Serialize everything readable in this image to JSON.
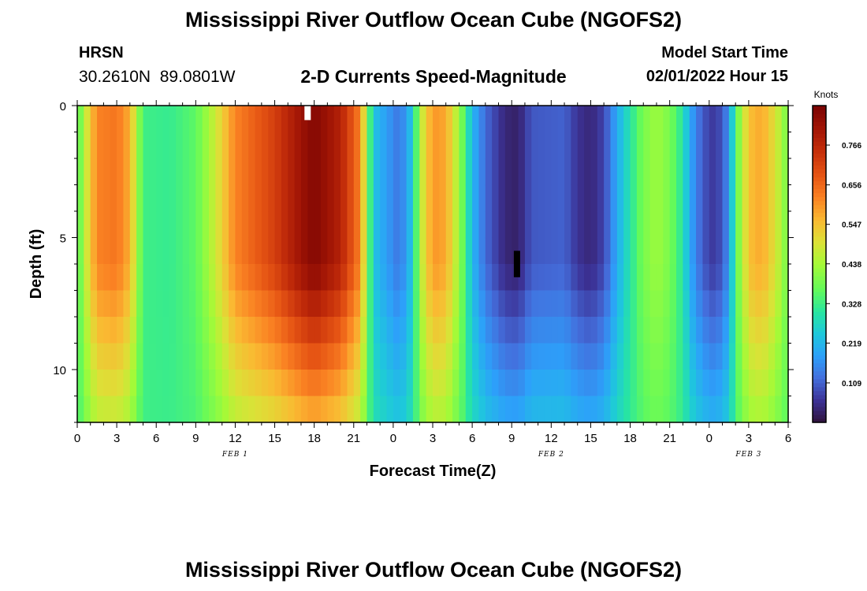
{
  "header": {
    "title": "Mississippi River Outflow Ocean Cube (NGOFS2)",
    "station": "HRSN",
    "coords": "30.2610N  89.0801W",
    "plot_title": "2-D Currents Speed-Magnitude",
    "model_label": "Model Start Time",
    "model_time": "02/01/2022 Hour 15"
  },
  "footer": {
    "title": "Mississippi River Outflow Ocean Cube (NGOFS2)"
  },
  "chart_data": {
    "type": "heatmap",
    "title": "2-D Currents Speed-Magnitude",
    "xlabel": "Forecast Time(Z)",
    "ylabel": "Depth (ft)",
    "colorbar_label": "Knots",
    "colorbar_ticks": [
      "0.766",
      "0.656",
      "0.547",
      "0.438",
      "0.328",
      "0.219",
      "0.109"
    ],
    "colorbar_range": [
      0,
      0.875
    ],
    "x_tick_labels": [
      "0",
      "3",
      "6",
      "9",
      "12",
      "15",
      "18",
      "21",
      "0",
      "3",
      "6",
      "9",
      "12",
      "15",
      "18",
      "21",
      "0",
      "3",
      "6"
    ],
    "x_range_hours": [
      0,
      54
    ],
    "date_labels": [
      {
        "text": "FEB 1",
        "hour": 12
      },
      {
        "text": "FEB 2",
        "hour": 36
      },
      {
        "text": "FEB 3",
        "hour": 51
      }
    ],
    "y_tick_labels": [
      "0",
      "5",
      "10"
    ],
    "y_range_ft": [
      0,
      12
    ],
    "profile_knots": [
      [
        0,
        0.33
      ],
      [
        0.5,
        0.45
      ],
      [
        1.5,
        0.62
      ],
      [
        3,
        0.64
      ],
      [
        4,
        0.57
      ],
      [
        4.5,
        0.45
      ],
      [
        5,
        0.33
      ],
      [
        7,
        0.32
      ],
      [
        9,
        0.36
      ],
      [
        10.5,
        0.48
      ],
      [
        12,
        0.62
      ],
      [
        15,
        0.72
      ],
      [
        17,
        0.82
      ],
      [
        18,
        0.86
      ],
      [
        20,
        0.78
      ],
      [
        21.5,
        0.62
      ],
      [
        22,
        0.42
      ],
      [
        22.5,
        0.24
      ],
      [
        23.5,
        0.18
      ],
      [
        24.5,
        0.13
      ],
      [
        25.5,
        0.25
      ],
      [
        26,
        0.45
      ],
      [
        27,
        0.6
      ],
      [
        28,
        0.58
      ],
      [
        29,
        0.43
      ],
      [
        30,
        0.22
      ],
      [
        31,
        0.12
      ],
      [
        32.5,
        0.04
      ],
      [
        33.5,
        0.03
      ],
      [
        34.5,
        0.1
      ],
      [
        37,
        0.11
      ],
      [
        38,
        0.06
      ],
      [
        39,
        0.04
      ],
      [
        40,
        0.08
      ],
      [
        41,
        0.2
      ],
      [
        42,
        0.3
      ],
      [
        43,
        0.39
      ],
      [
        44,
        0.43
      ],
      [
        45,
        0.39
      ],
      [
        46,
        0.3
      ],
      [
        46.5,
        0.2
      ],
      [
        47.5,
        0.1
      ],
      [
        48.5,
        0.06
      ],
      [
        49.5,
        0.16
      ],
      [
        50,
        0.35
      ],
      [
        51,
        0.55
      ],
      [
        52,
        0.58
      ],
      [
        53,
        0.5
      ],
      [
        54,
        0.38
      ]
    ],
    "markers": [
      {
        "hour": 17.5,
        "depth_top": 0,
        "depth_bottom": 0.55,
        "color": "#ffffff"
      },
      {
        "hour": 33.4,
        "depth_top": 5.5,
        "depth_bottom": 6.5,
        "color": "#000000"
      }
    ]
  }
}
